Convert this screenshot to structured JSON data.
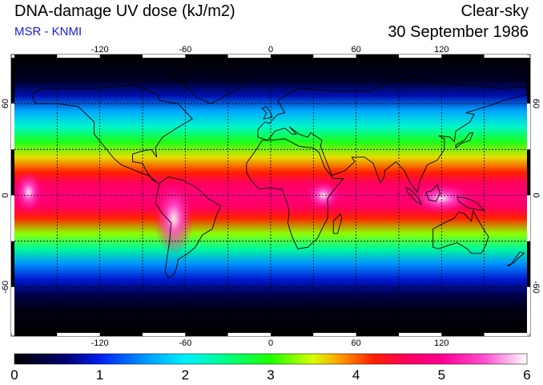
{
  "header": {
    "title": "DNA-damage UV dose (kJ/m2)",
    "subtitle": "MSR - KNMI",
    "sky_condition": "Clear-sky",
    "date": "30 September 1986"
  },
  "colors": {
    "subtitle": "#1a1adf",
    "map_background": "#000000",
    "land_outline": "#000000",
    "grid": "#000000"
  },
  "map": {
    "projection": "equirectangular",
    "lon_range": [
      -180,
      180
    ],
    "lat_range": [
      -90,
      90
    ],
    "lon_ticks": [
      "-120",
      "-60",
      "0",
      "60",
      "120"
    ],
    "lat_ticks": [
      "60",
      "0",
      "-60"
    ],
    "grid": "dashed",
    "peak_dose_regions": [
      "Andes",
      "East Africa highlands",
      "Maritime Continent"
    ]
  },
  "colorbar": {
    "min": 0,
    "max": 6,
    "labels": [
      "0",
      "1",
      "2",
      "3",
      "4",
      "5",
      "6"
    ],
    "stops": [
      {
        "value": 0.0,
        "color": "#000000"
      },
      {
        "value": 0.6,
        "color": "#000070"
      },
      {
        "value": 1.0,
        "color": "#0020f0"
      },
      {
        "value": 1.6,
        "color": "#00a8ff"
      },
      {
        "value": 2.0,
        "color": "#00f0ff"
      },
      {
        "value": 2.5,
        "color": "#00ff80"
      },
      {
        "value": 3.0,
        "color": "#20ff00"
      },
      {
        "value": 3.5,
        "color": "#d8ff00"
      },
      {
        "value": 3.8,
        "color": "#ffa000"
      },
      {
        "value": 4.2,
        "color": "#ff2000"
      },
      {
        "value": 4.6,
        "color": "#ff0060"
      },
      {
        "value": 5.0,
        "color": "#ff0090"
      },
      {
        "value": 5.5,
        "color": "#ff50d0"
      },
      {
        "value": 6.0,
        "color": "#ffffff"
      }
    ]
  }
}
